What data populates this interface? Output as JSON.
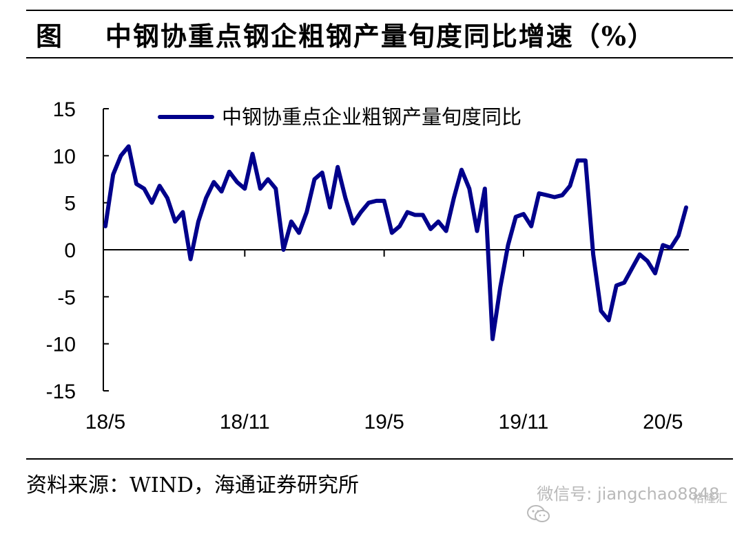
{
  "header": {
    "title": "图    中钢协重点钢企粗钢产量旬度同比增速（%）"
  },
  "footer": {
    "source": "资料来源：WIND，海通证券研究所",
    "watermark": "微信号: jiangchao8848",
    "badge": "格隆汇"
  },
  "colors": {
    "series": "#00008B",
    "axis": "#000000"
  },
  "chart_data": {
    "type": "line",
    "title": "",
    "xlabel": "",
    "ylabel": "",
    "ylim": [
      -15,
      15
    ],
    "yticks": [
      "15",
      "10",
      "5",
      "0",
      "-5",
      "-10",
      "-15"
    ],
    "ytick_values": [
      15,
      10,
      5,
      0,
      -5,
      -10,
      -15
    ],
    "xtick_labels": [
      "18/5",
      "18/11",
      "19/5",
      "19/11",
      "20/5"
    ],
    "xtick_label_index": [
      0,
      18,
      36,
      54,
      72
    ],
    "xtick_mark_index": [
      18,
      36,
      54
    ],
    "legend": {
      "position": "top",
      "entries": [
        "中钢协重点企业粗钢产量旬度同比"
      ]
    },
    "grid": false,
    "series": [
      {
        "name": "中钢协重点企业粗钢产量旬度同比",
        "values": [
          2.5,
          8.0,
          10.0,
          11.0,
          7.0,
          6.5,
          5.0,
          6.8,
          5.5,
          3.0,
          4.0,
          -1.0,
          3.0,
          5.5,
          7.2,
          6.2,
          8.3,
          7.2,
          6.5,
          10.2,
          6.5,
          7.5,
          6.5,
          0.0,
          3.0,
          1.8,
          4.0,
          7.5,
          8.2,
          4.5,
          8.8,
          5.5,
          2.8,
          4.0,
          5.0,
          5.2,
          5.2,
          1.8,
          2.5,
          4.0,
          3.7,
          3.7,
          2.2,
          3.0,
          2.0,
          5.5,
          8.5,
          6.5,
          2.0,
          6.5,
          -9.5,
          -4.0,
          0.5,
          3.5,
          3.8,
          2.5,
          6.0,
          5.8,
          5.6,
          5.8,
          6.8,
          9.5,
          9.5,
          -0.5,
          -6.5,
          -7.5,
          -3.8,
          -3.5,
          -2.0,
          -0.5,
          -1.2,
          -2.5,
          0.5,
          0.2,
          1.5,
          4.5
        ]
      }
    ]
  }
}
